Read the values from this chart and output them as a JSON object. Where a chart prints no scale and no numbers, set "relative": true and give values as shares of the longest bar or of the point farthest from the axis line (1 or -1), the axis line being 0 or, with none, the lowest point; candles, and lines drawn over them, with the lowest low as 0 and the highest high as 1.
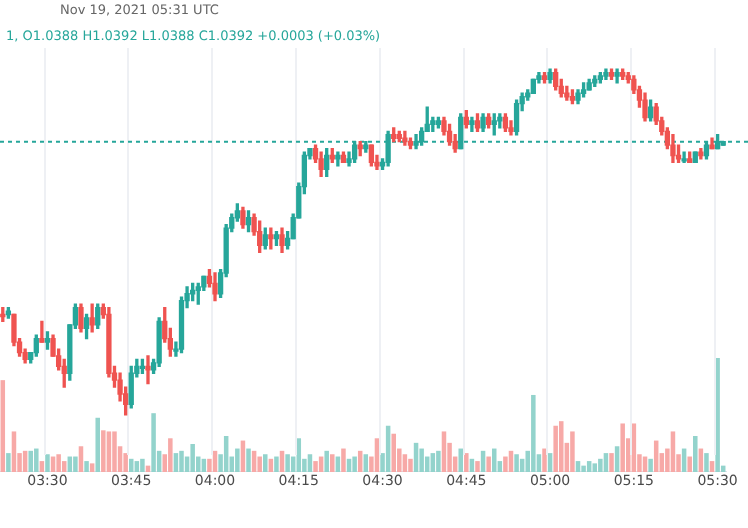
{
  "chart_data": [
    {
      "type": "candlestick",
      "title": "Nov 19, 2021 05:31 UTC",
      "subtitle": "1, O1.0388 H1.0392 L1.0388 C1.0392 +0.0003 (+0.03%)",
      "relative": true,
      "grid": "x",
      "tick_labels": "x",
      "categories": [
        null,
        null,
        null,
        null,
        null,
        null,
        null,
        null,
        "03:30",
        null,
        null,
        null,
        null,
        null,
        null,
        null,
        null,
        null,
        null,
        null,
        null,
        null,
        null,
        "03:45",
        null,
        null,
        null,
        null,
        null,
        null,
        null,
        null,
        null,
        null,
        null,
        null,
        null,
        null,
        "04:00",
        null,
        null,
        null,
        null,
        null,
        null,
        null,
        null,
        null,
        null,
        null,
        null,
        null,
        null,
        "04:15",
        null,
        null,
        null,
        null,
        null,
        null,
        null,
        null,
        null,
        null,
        null,
        null,
        null,
        null,
        "04:30",
        null,
        null,
        null,
        null,
        null,
        null,
        null,
        null,
        null,
        null,
        null,
        null,
        null,
        null,
        "04:45",
        null,
        null,
        null,
        null,
        null,
        null,
        null,
        null,
        null,
        null,
        null,
        null,
        null,
        null,
        "05:00",
        null,
        null,
        null,
        null,
        null,
        null,
        null,
        null,
        null,
        null,
        null,
        null,
        null,
        null,
        "05:15",
        null,
        null,
        null,
        null,
        null,
        null,
        null,
        null,
        null,
        null,
        null,
        null,
        null,
        null,
        "05:30",
        null
      ],
      "ohlc": [
        [
          0.29,
          0.31,
          0.27,
          0.29
        ],
        [
          0.29,
          0.31,
          0.28,
          0.3
        ],
        [
          0.29,
          0.29,
          0.2,
          0.21
        ],
        [
          0.21,
          0.22,
          0.17,
          0.18
        ],
        [
          0.18,
          0.19,
          0.15,
          0.16
        ],
        [
          0.16,
          0.18,
          0.15,
          0.18
        ],
        [
          0.18,
          0.23,
          0.17,
          0.22
        ],
        [
          0.22,
          0.27,
          0.21,
          0.21
        ],
        [
          0.21,
          0.24,
          0.19,
          0.22
        ],
        [
          0.22,
          0.23,
          0.17,
          0.17
        ],
        [
          0.17,
          0.19,
          0.13,
          0.14
        ],
        [
          0.14,
          0.16,
          0.08,
          0.12
        ],
        [
          0.12,
          0.26,
          0.1,
          0.26
        ],
        [
          0.26,
          0.32,
          0.25,
          0.31
        ],
        [
          0.31,
          0.32,
          0.24,
          0.25
        ],
        [
          0.25,
          0.29,
          0.22,
          0.28
        ],
        [
          0.28,
          0.32,
          0.24,
          0.26
        ],
        [
          0.26,
          0.32,
          0.25,
          0.31
        ],
        [
          0.31,
          0.32,
          0.28,
          0.29
        ],
        [
          0.29,
          0.31,
          0.11,
          0.12
        ],
        [
          0.12,
          0.14,
          0.08,
          0.1
        ],
        [
          0.1,
          0.12,
          0.04,
          0.06
        ],
        [
          0.06,
          0.08,
          0,
          0.03
        ],
        [
          0.03,
          0.14,
          0.02,
          0.12
        ],
        [
          0.12,
          0.16,
          0.11,
          0.14
        ],
        [
          0.14,
          0.16,
          0.12,
          0.14
        ],
        [
          0.14,
          0.17,
          0.09,
          0.13
        ],
        [
          0.13,
          0.16,
          0.12,
          0.15
        ],
        [
          0.15,
          0.28,
          0.14,
          0.27
        ],
        [
          0.27,
          0.31,
          0.21,
          0.22
        ],
        [
          0.22,
          0.25,
          0.17,
          0.19
        ],
        [
          0.19,
          0.21,
          0.17,
          0.19
        ],
        [
          0.19,
          0.34,
          0.18,
          0.33
        ],
        [
          0.33,
          0.37,
          0.31,
          0.35
        ],
        [
          0.35,
          0.38,
          0.33,
          0.36
        ],
        [
          0.36,
          0.38,
          0.32,
          0.37
        ],
        [
          0.37,
          0.4,
          0.36,
          0.4
        ],
        [
          0.4,
          0.42,
          0.37,
          0.38
        ],
        [
          0.38,
          0.41,
          0.33,
          0.35
        ],
        [
          0.35,
          0.42,
          0.34,
          0.41
        ],
        [
          0.41,
          0.55,
          0.4,
          0.54
        ],
        [
          0.54,
          0.58,
          0.53,
          0.57
        ],
        [
          0.57,
          0.61,
          0.56,
          0.59
        ],
        [
          0.59,
          0.6,
          0.54,
          0.55
        ],
        [
          0.55,
          0.59,
          0.53,
          0.57
        ],
        [
          0.57,
          0.58,
          0.52,
          0.53
        ],
        [
          0.53,
          0.56,
          0.47,
          0.49
        ],
        [
          0.49,
          0.54,
          0.48,
          0.52
        ],
        [
          0.52,
          0.54,
          0.48,
          0.51
        ],
        [
          0.51,
          0.53,
          0.49,
          0.52
        ],
        [
          0.52,
          0.54,
          0.47,
          0.49
        ],
        [
          0.49,
          0.53,
          0.48,
          0.51
        ],
        [
          0.51,
          0.58,
          0.51,
          0.57
        ],
        [
          0.57,
          0.67,
          0.57,
          0.66
        ],
        [
          0.66,
          0.76,
          0.64,
          0.75
        ],
        [
          0.75,
          0.77,
          0.74,
          0.77
        ],
        [
          0.77,
          0.78,
          0.73,
          0.74
        ],
        [
          0.74,
          0.76,
          0.69,
          0.71
        ],
        [
          0.71,
          0.77,
          0.69,
          0.75
        ],
        [
          0.75,
          0.77,
          0.73,
          0.74
        ],
        [
          0.74,
          0.76,
          0.72,
          0.75
        ],
        [
          0.75,
          0.76,
          0.73,
          0.73
        ],
        [
          0.73,
          0.76,
          0.72,
          0.74
        ],
        [
          0.74,
          0.79,
          0.73,
          0.78
        ],
        [
          0.78,
          0.79,
          0.75,
          0.77
        ],
        [
          0.77,
          0.79,
          0.76,
          0.78
        ],
        [
          0.78,
          0.78,
          0.72,
          0.73
        ],
        [
          0.73,
          0.75,
          0.71,
          0.72
        ],
        [
          0.72,
          0.74,
          0.71,
          0.73
        ],
        [
          0.73,
          0.82,
          0.72,
          0.81
        ],
        [
          0.81,
          0.83,
          0.79,
          0.8
        ],
        [
          0.81,
          0.82,
          0.79,
          0.8
        ],
        [
          0.8,
          0.82,
          0.78,
          0.79
        ],
        [
          0.79,
          0.8,
          0.77,
          0.78
        ],
        [
          0.78,
          0.81,
          0.77,
          0.79
        ],
        [
          0.79,
          0.83,
          0.78,
          0.82
        ],
        [
          0.82,
          0.89,
          0.82,
          0.84
        ],
        [
          0.84,
          0.86,
          0.82,
          0.85
        ],
        [
          0.84,
          0.86,
          0.83,
          0.85
        ],
        [
          0.85,
          0.86,
          0.81,
          0.82
        ],
        [
          0.82,
          0.84,
          0.78,
          0.79
        ],
        [
          0.79,
          0.81,
          0.76,
          0.77
        ],
        [
          0.77,
          0.87,
          0.77,
          0.86
        ],
        [
          0.86,
          0.88,
          0.83,
          0.84
        ],
        [
          0.84,
          0.86,
          0.82,
          0.85
        ],
        [
          0.85,
          0.87,
          0.82,
          0.83
        ],
        [
          0.83,
          0.87,
          0.82,
          0.86
        ],
        [
          0.86,
          0.87,
          0.83,
          0.84
        ],
        [
          0.84,
          0.87,
          0.81,
          0.85
        ],
        [
          0.85,
          0.87,
          0.83,
          0.86
        ],
        [
          0.86,
          0.87,
          0.82,
          0.83
        ],
        [
          0.83,
          0.85,
          0.81,
          0.82
        ],
        [
          0.82,
          0.91,
          0.81,
          0.9
        ],
        [
          0.9,
          0.93,
          0.88,
          0.92
        ],
        [
          0.92,
          0.94,
          0.91,
          0.93
        ],
        [
          0.93,
          0.97,
          0.93,
          0.97
        ],
        [
          0.97,
          0.99,
          0.96,
          0.98
        ],
        [
          0.98,
          0.99,
          0.96,
          0.97
        ],
        [
          0.97,
          1,
          0.96,
          0.99
        ],
        [
          0.99,
          1,
          0.94,
          0.95
        ],
        [
          0.95,
          0.97,
          0.92,
          0.93
        ],
        [
          0.93,
          0.95,
          0.91,
          0.92
        ],
        [
          0.92,
          0.94,
          0.9,
          0.91
        ],
        [
          0.91,
          0.94,
          0.9,
          0.93
        ],
        [
          0.93,
          0.96,
          0.92,
          0.94
        ],
        [
          0.94,
          0.97,
          0.94,
          0.96
        ],
        [
          0.96,
          0.98,
          0.95,
          0.97
        ],
        [
          0.97,
          0.99,
          0.96,
          0.98
        ],
        [
          0.98,
          1,
          0.97,
          0.99
        ],
        [
          0.99,
          1,
          0.97,
          0.98
        ],
        [
          0.98,
          1,
          0.96,
          0.99
        ],
        [
          0.99,
          1,
          0.97,
          0.98
        ],
        [
          0.98,
          0.99,
          0.96,
          0.97
        ],
        [
          0.97,
          0.98,
          0.93,
          0.94
        ],
        [
          0.94,
          0.95,
          0.89,
          0.91
        ],
        [
          0.91,
          0.93,
          0.85,
          0.86
        ],
        [
          0.86,
          0.91,
          0.85,
          0.89
        ],
        [
          0.89,
          0.9,
          0.84,
          0.85
        ],
        [
          0.85,
          0.86,
          0.81,
          0.82
        ],
        [
          0.82,
          0.83,
          0.77,
          0.78
        ],
        [
          0.78,
          0.81,
          0.73,
          0.75
        ],
        [
          0.75,
          0.78,
          0.73,
          0.74
        ],
        [
          0.74,
          0.76,
          0.73,
          0.74
        ],
        [
          0.74,
          0.76,
          0.73,
          0.73
        ],
        [
          0.73,
          0.76,
          0.73,
          0.76
        ],
        [
          0.76,
          0.77,
          0.74,
          0.75
        ],
        [
          0.75,
          0.79,
          0.74,
          0.78
        ],
        [
          0.78,
          0.8,
          0.77,
          0.77
        ],
        [
          0.77,
          0.81,
          0.77,
          0.79
        ],
        [
          0.78,
          0.79,
          0.78,
          0.79
        ]
      ],
      "colors": [
        "#ef5350",
        "#26a69a",
        "#ef5350",
        "#ef5350",
        "#ef5350",
        "#26a69a",
        "#26a69a",
        "#ef5350",
        "#26a69a",
        "#ef5350",
        "#ef5350",
        "#ef5350",
        "#26a69a",
        "#26a69a",
        "#ef5350",
        "#26a69a",
        "#ef5350",
        "#26a69a",
        "#ef5350",
        "#ef5350",
        "#ef5350",
        "#ef5350",
        "#ef5350",
        "#26a69a",
        "#26a69a",
        "#26a69a",
        "#ef5350",
        "#26a69a",
        "#26a69a",
        "#ef5350",
        "#ef5350",
        "#26a69a",
        "#26a69a",
        "#26a69a",
        "#26a69a",
        "#26a69a",
        "#26a69a",
        "#ef5350",
        "#ef5350",
        "#26a69a",
        "#26a69a",
        "#26a69a",
        "#26a69a",
        "#ef5350",
        "#26a69a",
        "#ef5350",
        "#ef5350",
        "#26a69a",
        "#ef5350",
        "#26a69a",
        "#ef5350",
        "#26a69a",
        "#26a69a",
        "#26a69a",
        "#26a69a",
        "#26a69a",
        "#ef5350",
        "#ef5350",
        "#26a69a",
        "#ef5350",
        "#26a69a",
        "#ef5350",
        "#26a69a",
        "#26a69a",
        "#ef5350",
        "#26a69a",
        "#ef5350",
        "#ef5350",
        "#26a69a",
        "#26a69a",
        "#ef5350",
        "#ef5350",
        "#ef5350",
        "#ef5350",
        "#26a69a",
        "#26a69a",
        "#26a69a",
        "#26a69a",
        "#26a69a",
        "#ef5350",
        "#ef5350",
        "#ef5350",
        "#26a69a",
        "#ef5350",
        "#26a69a",
        "#ef5350",
        "#26a69a",
        "#ef5350",
        "#26a69a",
        "#26a69a",
        "#ef5350",
        "#ef5350",
        "#26a69a",
        "#26a69a",
        "#26a69a",
        "#26a69a",
        "#26a69a",
        "#ef5350",
        "#26a69a",
        "#ef5350",
        "#ef5350",
        "#ef5350",
        "#ef5350",
        "#26a69a",
        "#26a69a",
        "#26a69a",
        "#26a69a",
        "#26a69a",
        "#26a69a",
        "#ef5350",
        "#26a69a",
        "#ef5350",
        "#ef5350",
        "#ef5350",
        "#ef5350",
        "#ef5350",
        "#26a69a",
        "#ef5350",
        "#ef5350",
        "#ef5350",
        "#ef5350",
        "#ef5350",
        "#26a69a",
        "#ef5350",
        "#26a69a",
        "#ef5350",
        "#26a69a",
        "#ef5350",
        "#26a69a",
        "#26a69a"
      ],
      "ref_lines": [
        {
          "axis": "y",
          "value": 0.79,
          "color": "#26a69a",
          "line_style": "dashed"
        }
      ]
    },
    {
      "type": "bar",
      "relative": true,
      "tick_labels": false,
      "categories": [
        null,
        null,
        null,
        null,
        null,
        null,
        null,
        null,
        null,
        null,
        null,
        null,
        null,
        null,
        null,
        null,
        null,
        null,
        null,
        null,
        null,
        null,
        null,
        null,
        null,
        null,
        null,
        null,
        null,
        null,
        null,
        null,
        null,
        null,
        null,
        null,
        null,
        null,
        null,
        null,
        null,
        null,
        null,
        null,
        null,
        null,
        null,
        null,
        null,
        null,
        null,
        null,
        null,
        null,
        null,
        null,
        null,
        null,
        null,
        null,
        null,
        null,
        null,
        null,
        null,
        null,
        null,
        null,
        null,
        null,
        null,
        null,
        null,
        null,
        null,
        null,
        null,
        null,
        null,
        null,
        null,
        null,
        null,
        null,
        null,
        null,
        null,
        null,
        null,
        null,
        null,
        null,
        null,
        null,
        null,
        null,
        null,
        null,
        null,
        null,
        null,
        null,
        null,
        null,
        null,
        null,
        null,
        null,
        null,
        null,
        null,
        null,
        null,
        null,
        null,
        null,
        null,
        null,
        null,
        null,
        null,
        null,
        null,
        null,
        null,
        null,
        null,
        null,
        null,
        null
      ],
      "values": [
        0.8,
        0.16,
        0.35,
        0.16,
        0.18,
        0.18,
        0.2,
        0.09,
        0.15,
        0.13,
        0.15,
        0.09,
        0.13,
        0.13,
        0.22,
        0.09,
        0.07,
        0.47,
        0.36,
        0.35,
        0.35,
        0.22,
        0.16,
        0.11,
        0.09,
        0.11,
        0.05,
        0.51,
        0.18,
        0.15,
        0.29,
        0.16,
        0.18,
        0.13,
        0.24,
        0.13,
        0.11,
        0.11,
        0.18,
        0.15,
        0.31,
        0.13,
        0.2,
        0.27,
        0.2,
        0.18,
        0.13,
        0.15,
        0.11,
        0.13,
        0.18,
        0.15,
        0.13,
        0.29,
        0.11,
        0.15,
        0.09,
        0.13,
        0.18,
        0.15,
        0.13,
        0.2,
        0.11,
        0.13,
        0.18,
        0.15,
        0.13,
        0.29,
        0.16,
        0.4,
        0.33,
        0.2,
        0.15,
        0.11,
        0.25,
        0.2,
        0.13,
        0.16,
        0.18,
        0.35,
        0.25,
        0.13,
        0.2,
        0.16,
        0.11,
        0.09,
        0.18,
        0.13,
        0.2,
        0.09,
        0.13,
        0.18,
        0.15,
        0.11,
        0.18,
        0.67,
        0.15,
        0.2,
        0.16,
        0.4,
        0.44,
        0.25,
        0.35,
        0.09,
        0.05,
        0.09,
        0.07,
        0.11,
        0.16,
        0.16,
        0.22,
        0.42,
        0.29,
        0.42,
        0.15,
        0.13,
        0.11,
        0.27,
        0.16,
        0.2,
        0.35,
        0.15,
        0.2,
        0.13,
        0.31,
        0.2,
        0.16,
        0.09,
        1,
        0.05
      ],
      "colors": [
        "#f7a9a7",
        "#93d3cc",
        "#f7a9a7",
        "#f7a9a7",
        "#f7a9a7",
        "#93d3cc",
        "#93d3cc",
        "#f7a9a7",
        "#93d3cc",
        "#f7a9a7",
        "#f7a9a7",
        "#f7a9a7",
        "#93d3cc",
        "#93d3cc",
        "#f7a9a7",
        "#93d3cc",
        "#f7a9a7",
        "#93d3cc",
        "#f7a9a7",
        "#f7a9a7",
        "#f7a9a7",
        "#f7a9a7",
        "#f7a9a7",
        "#93d3cc",
        "#93d3cc",
        "#93d3cc",
        "#f7a9a7",
        "#93d3cc",
        "#93d3cc",
        "#f7a9a7",
        "#f7a9a7",
        "#93d3cc",
        "#93d3cc",
        "#93d3cc",
        "#93d3cc",
        "#93d3cc",
        "#93d3cc",
        "#f7a9a7",
        "#f7a9a7",
        "#93d3cc",
        "#93d3cc",
        "#93d3cc",
        "#93d3cc",
        "#f7a9a7",
        "#93d3cc",
        "#f7a9a7",
        "#f7a9a7",
        "#93d3cc",
        "#f7a9a7",
        "#93d3cc",
        "#f7a9a7",
        "#93d3cc",
        "#93d3cc",
        "#93d3cc",
        "#93d3cc",
        "#93d3cc",
        "#f7a9a7",
        "#f7a9a7",
        "#93d3cc",
        "#f7a9a7",
        "#93d3cc",
        "#f7a9a7",
        "#93d3cc",
        "#93d3cc",
        "#f7a9a7",
        "#93d3cc",
        "#f7a9a7",
        "#f7a9a7",
        "#93d3cc",
        "#93d3cc",
        "#f7a9a7",
        "#f7a9a7",
        "#f7a9a7",
        "#f7a9a7",
        "#93d3cc",
        "#93d3cc",
        "#93d3cc",
        "#93d3cc",
        "#93d3cc",
        "#f7a9a7",
        "#f7a9a7",
        "#f7a9a7",
        "#93d3cc",
        "#f7a9a7",
        "#93d3cc",
        "#f7a9a7",
        "#93d3cc",
        "#f7a9a7",
        "#93d3cc",
        "#93d3cc",
        "#f7a9a7",
        "#f7a9a7",
        "#93d3cc",
        "#93d3cc",
        "#93d3cc",
        "#93d3cc",
        "#93d3cc",
        "#f7a9a7",
        "#93d3cc",
        "#f7a9a7",
        "#f7a9a7",
        "#f7a9a7",
        "#f7a9a7",
        "#93d3cc",
        "#93d3cc",
        "#93d3cc",
        "#93d3cc",
        "#93d3cc",
        "#93d3cc",
        "#f7a9a7",
        "#93d3cc",
        "#f7a9a7",
        "#f7a9a7",
        "#f7a9a7",
        "#f7a9a7",
        "#f7a9a7",
        "#93d3cc",
        "#f7a9a7",
        "#f7a9a7",
        "#f7a9a7",
        "#f7a9a7",
        "#f7a9a7",
        "#93d3cc",
        "#f7a9a7",
        "#93d3cc",
        "#f7a9a7",
        "#93d3cc",
        "#f7a9a7",
        "#93d3cc",
        "#93d3cc"
      ]
    }
  ]
}
